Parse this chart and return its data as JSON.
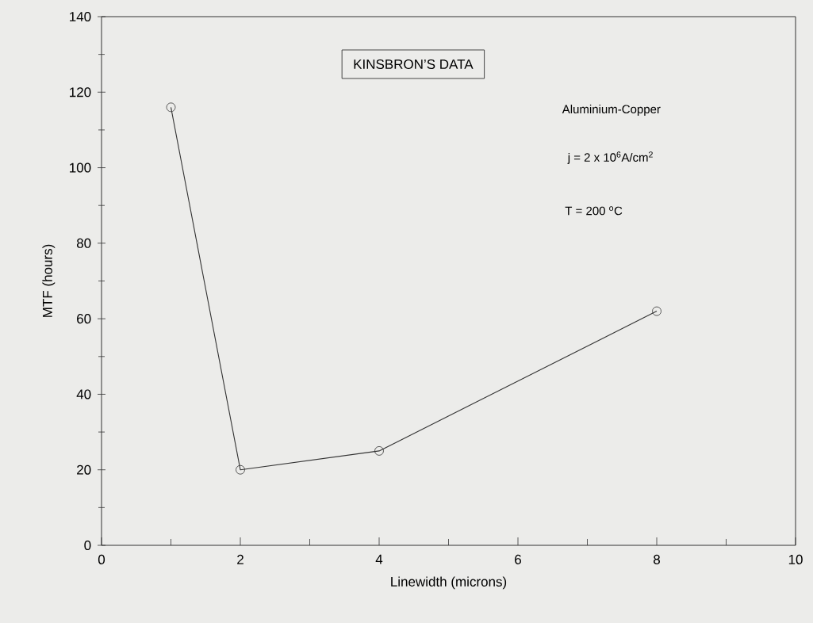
{
  "chart_data": {
    "type": "line",
    "title": "KINSBRON’S DATA",
    "xlabel": "Linewidth (microns)",
    "ylabel": "MTF (hours)",
    "x": [
      1,
      2,
      4,
      8
    ],
    "values": [
      116,
      20,
      25,
      62
    ],
    "color": "#333333",
    "marker": "circle",
    "line_style": "solid",
    "xlim": [
      0,
      10
    ],
    "xticks": [
      0,
      2,
      4,
      6,
      8,
      10
    ],
    "ylim": [
      0,
      140
    ],
    "yticks": [
      0,
      20,
      40,
      60,
      80,
      100,
      120,
      140
    ],
    "annotations": [
      "Aluminium-Copper",
      "j = 2 x 10$^{6}$A/cm$^{2}$",
      "T = 200 $^{o}$C"
    ]
  }
}
